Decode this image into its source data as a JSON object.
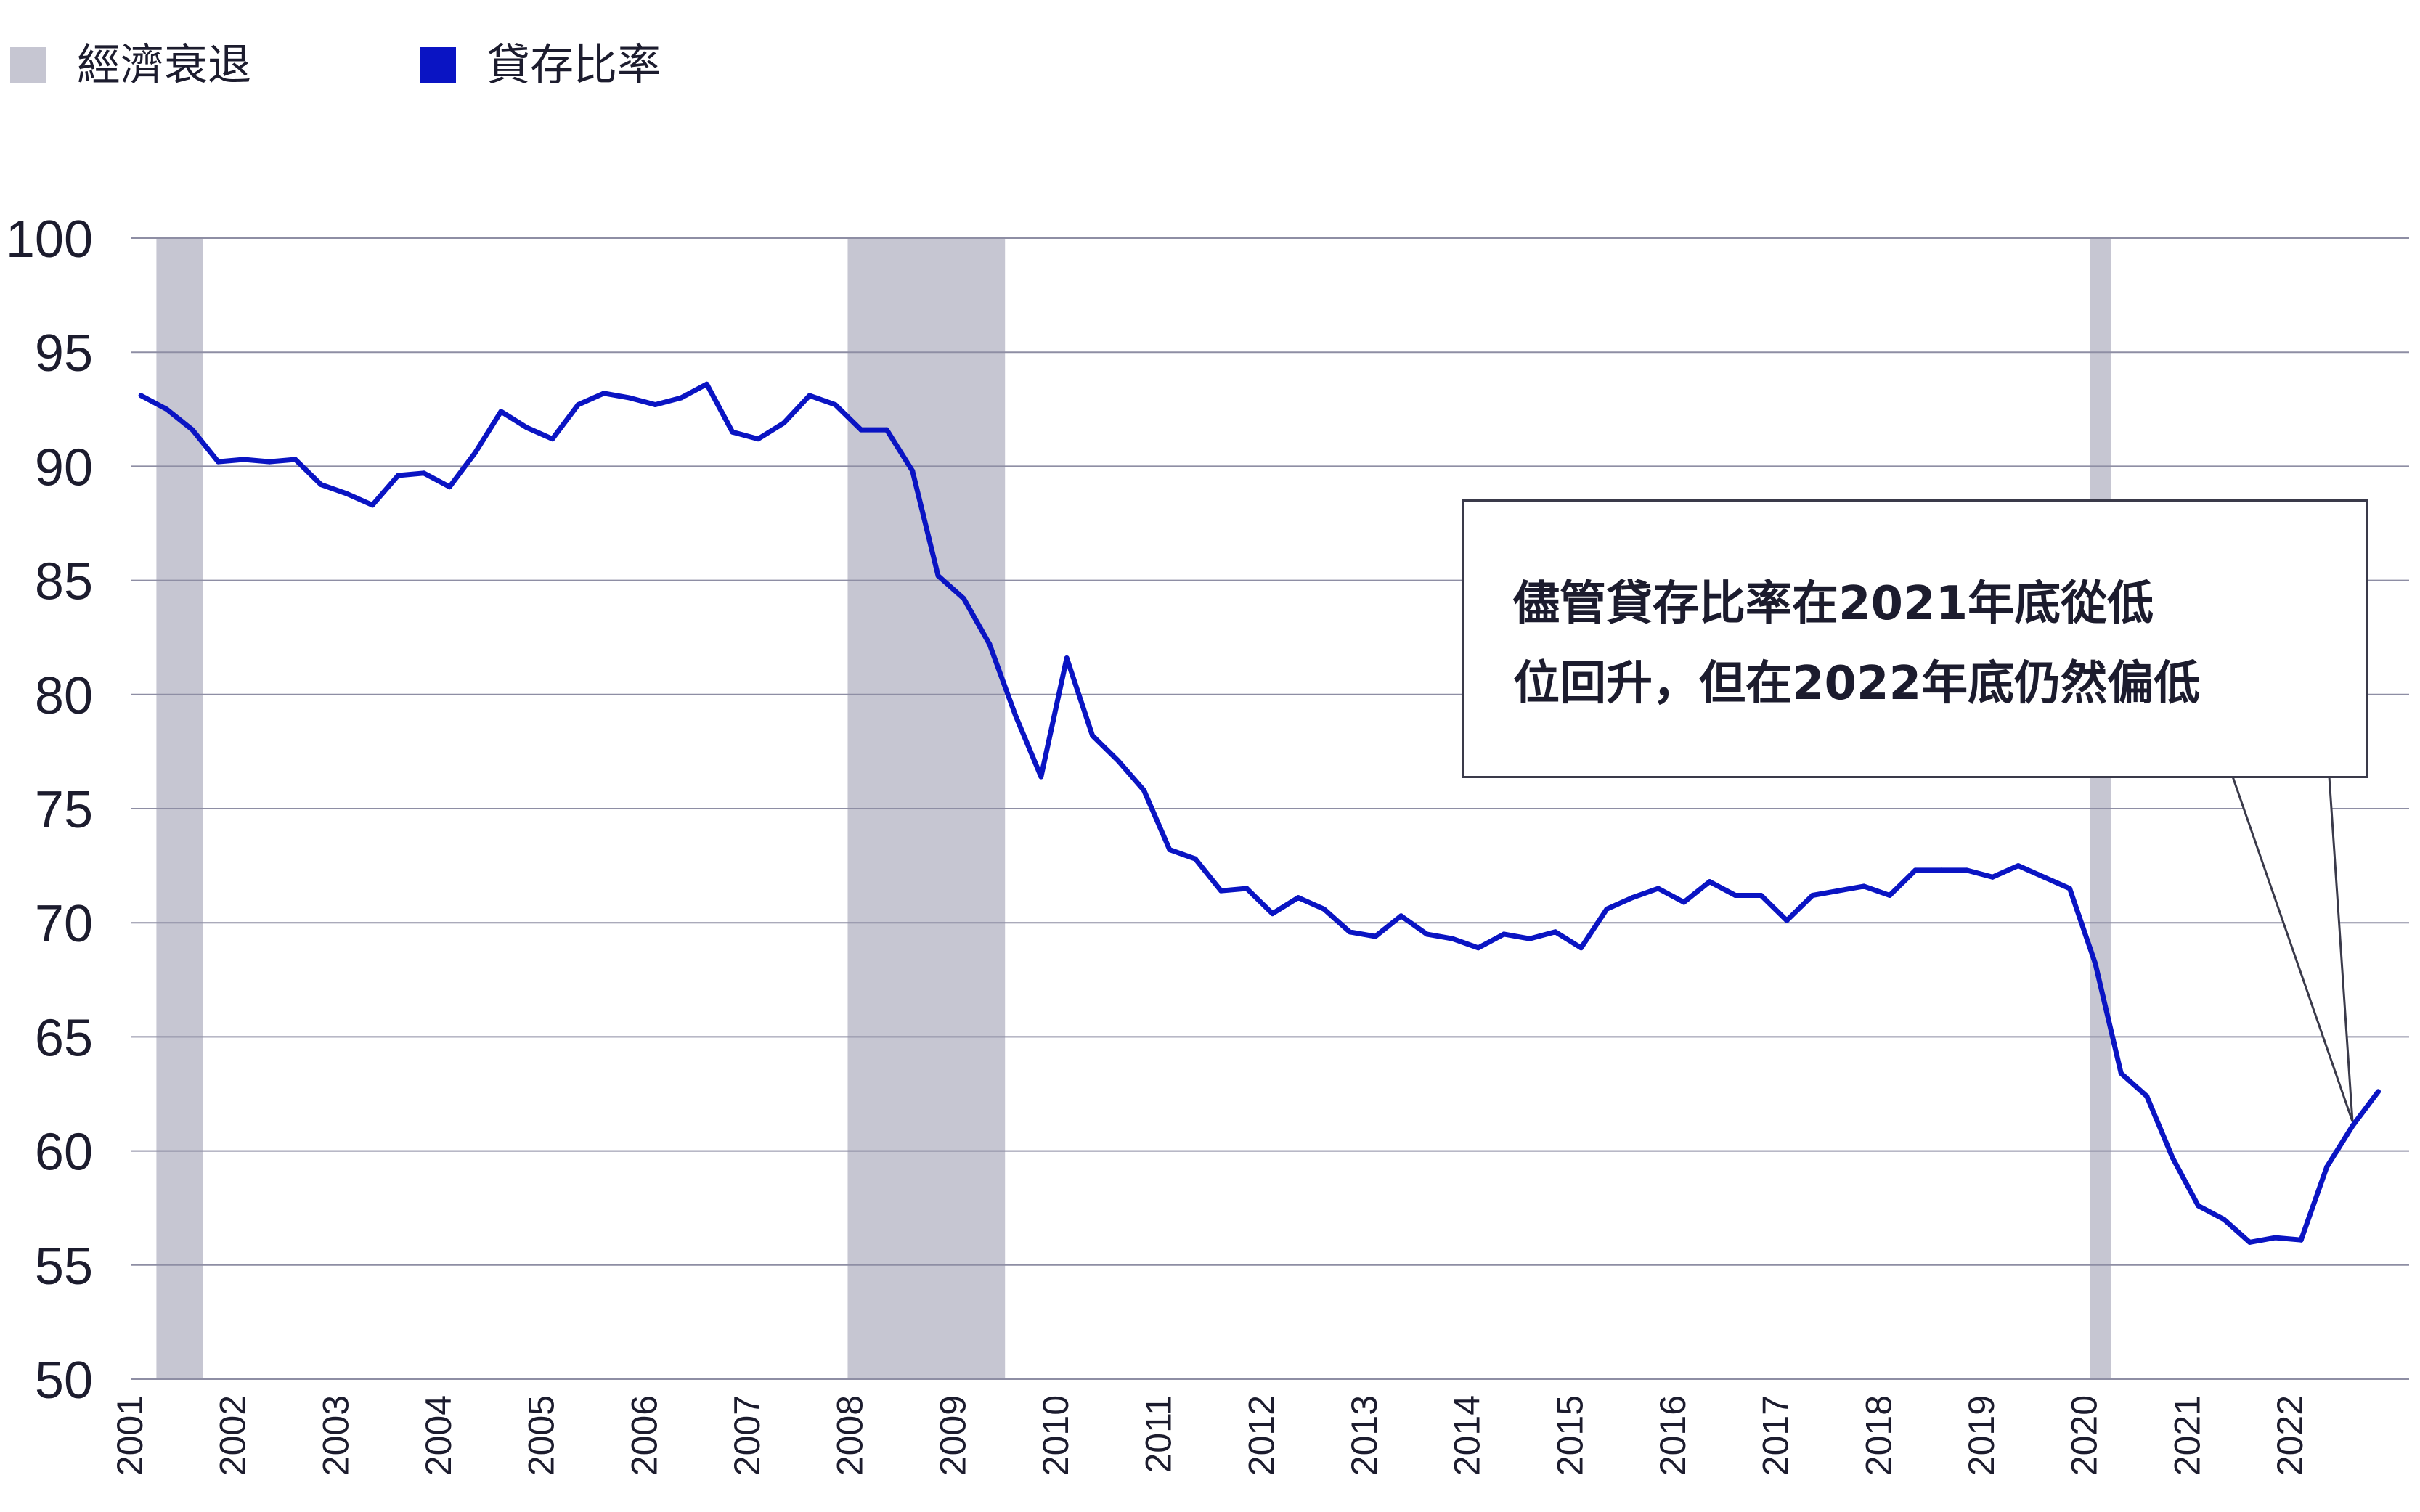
{
  "legend": {
    "recession": {
      "label": "經濟衰退",
      "color": "#c6c6d2"
    },
    "ldr": {
      "label": "貸存比率",
      "color": "#0a14c3"
    }
  },
  "annotation": {
    "lines": [
      "儘管貸存比率在2021年底從低",
      "位回升，但在2022年底仍然偏低"
    ]
  },
  "chart_data": {
    "type": "line",
    "series": [
      {
        "name": "貸存比率",
        "color": "#0a14c3"
      }
    ],
    "ylim": [
      50,
      100
    ],
    "y_ticks": [
      50,
      55,
      60,
      65,
      70,
      75,
      80,
      85,
      90,
      95,
      100
    ],
    "x_ticks": [
      "2001",
      "2002",
      "2003",
      "2004",
      "2005",
      "2006",
      "2007",
      "2008",
      "2009",
      "2010",
      "2011",
      "2012",
      "2013",
      "2014",
      "2015",
      "2016",
      "2017",
      "2018",
      "2019",
      "2020",
      "2021",
      "2022"
    ],
    "recessions": [
      [
        2001.25,
        2001.7
      ],
      [
        2007.97,
        2009.5
      ],
      [
        2020.05,
        2020.25
      ]
    ],
    "points": [
      [
        2001.1,
        93.1
      ],
      [
        2001.35,
        92.5
      ],
      [
        2001.6,
        91.6
      ],
      [
        2001.85,
        90.2
      ],
      [
        2002.1,
        90.3
      ],
      [
        2002.35,
        90.2
      ],
      [
        2002.6,
        90.3
      ],
      [
        2002.85,
        89.2
      ],
      [
        2003.1,
        88.8
      ],
      [
        2003.35,
        88.3
      ],
      [
        2003.6,
        89.6
      ],
      [
        2003.85,
        89.7
      ],
      [
        2004.1,
        89.1
      ],
      [
        2004.35,
        90.6
      ],
      [
        2004.6,
        92.4
      ],
      [
        2004.85,
        91.7
      ],
      [
        2005.1,
        91.2
      ],
      [
        2005.35,
        92.7
      ],
      [
        2005.6,
        93.2
      ],
      [
        2005.85,
        93.0
      ],
      [
        2006.1,
        92.7
      ],
      [
        2006.35,
        93.0
      ],
      [
        2006.6,
        93.6
      ],
      [
        2006.85,
        91.5
      ],
      [
        2007.1,
        91.2
      ],
      [
        2007.35,
        91.9
      ],
      [
        2007.6,
        93.1
      ],
      [
        2007.85,
        92.7
      ],
      [
        2008.1,
        91.6
      ],
      [
        2008.35,
        91.6
      ],
      [
        2008.6,
        89.8
      ],
      [
        2008.85,
        85.2
      ],
      [
        2009.1,
        84.2
      ],
      [
        2009.35,
        82.2
      ],
      [
        2009.6,
        79.1
      ],
      [
        2009.85,
        76.4
      ],
      [
        2010.1,
        81.6
      ],
      [
        2010.35,
        78.2
      ],
      [
        2010.6,
        77.1
      ],
      [
        2010.85,
        75.8
      ],
      [
        2011.1,
        73.2
      ],
      [
        2011.35,
        72.8
      ],
      [
        2011.6,
        71.4
      ],
      [
        2011.85,
        71.5
      ],
      [
        2012.1,
        70.4
      ],
      [
        2012.35,
        71.1
      ],
      [
        2012.6,
        70.6
      ],
      [
        2012.85,
        69.6
      ],
      [
        2013.1,
        69.4
      ],
      [
        2013.35,
        70.3
      ],
      [
        2013.6,
        69.5
      ],
      [
        2013.85,
        69.3
      ],
      [
        2014.1,
        68.9
      ],
      [
        2014.35,
        69.5
      ],
      [
        2014.6,
        69.3
      ],
      [
        2014.85,
        69.6
      ],
      [
        2015.1,
        68.9
      ],
      [
        2015.35,
        70.6
      ],
      [
        2015.6,
        71.1
      ],
      [
        2015.85,
        71.5
      ],
      [
        2016.1,
        70.9
      ],
      [
        2016.35,
        71.8
      ],
      [
        2016.6,
        71.2
      ],
      [
        2016.85,
        71.2
      ],
      [
        2017.1,
        70.1
      ],
      [
        2017.35,
        71.2
      ],
      [
        2017.6,
        71.4
      ],
      [
        2017.85,
        71.6
      ],
      [
        2018.1,
        71.2
      ],
      [
        2018.35,
        72.3
      ],
      [
        2018.6,
        72.3
      ],
      [
        2018.85,
        72.3
      ],
      [
        2019.1,
        72.0
      ],
      [
        2019.35,
        72.5
      ],
      [
        2019.6,
        72.0
      ],
      [
        2019.85,
        71.5
      ],
      [
        2020.1,
        68.2
      ],
      [
        2020.35,
        63.4
      ],
      [
        2020.6,
        62.4
      ],
      [
        2020.85,
        59.7
      ],
      [
        2021.1,
        57.6
      ],
      [
        2021.35,
        57.0
      ],
      [
        2021.6,
        56.0
      ],
      [
        2021.85,
        56.2
      ],
      [
        2022.1,
        56.1
      ],
      [
        2022.35,
        59.3
      ],
      [
        2022.6,
        61.1
      ],
      [
        2022.85,
        62.6
      ]
    ]
  }
}
